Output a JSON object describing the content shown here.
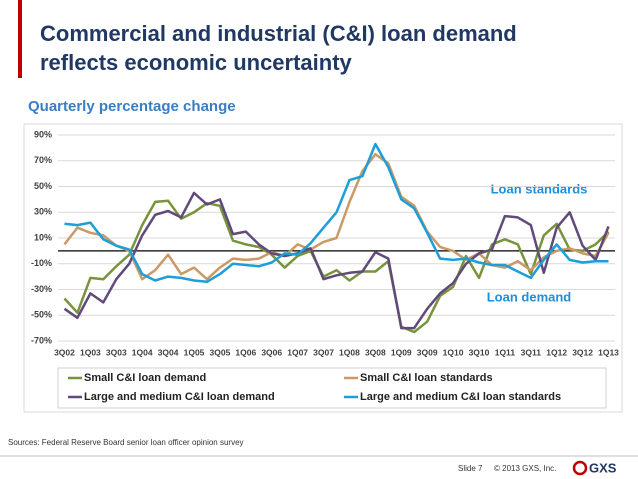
{
  "slide": {
    "title_lines": [
      "Commercial and industrial (C&I) loan demand",
      "reflects economic uncertainty"
    ],
    "source": "Sources: Federal Reserve Board senior loan officer opinion survey",
    "slide_number": "Slide 7",
    "copyright": "© 2013 GXS, Inc.",
    "logo": "GXS"
  },
  "chart_data": {
    "type": "line",
    "title": "Quarterly percentage change",
    "categories": [
      "3Q02",
      null,
      "1Q03",
      null,
      "3Q03",
      null,
      "1Q04",
      null,
      "3Q04",
      null,
      "1Q05",
      null,
      "3Q05",
      null,
      "1Q06",
      null,
      "3Q06",
      null,
      "1Q07",
      null,
      "3Q07",
      null,
      "1Q08",
      null,
      "3Q08",
      null,
      "1Q09",
      null,
      "3Q09",
      null,
      "1Q10",
      null,
      "3Q10",
      null,
      "1Q11",
      null,
      "3Q11",
      null,
      "1Q12",
      null,
      "3Q12",
      null,
      "1Q13"
    ],
    "series": [
      {
        "name": "Small C&I loan demand",
        "color": "#77933c",
        "values": [
          -37,
          -48,
          -21,
          -22,
          -12,
          -3,
          20,
          38,
          39,
          25,
          30,
          37,
          35,
          8,
          5,
          3,
          -3,
          -13,
          -4,
          0,
          -20,
          -15,
          -23,
          -16,
          -16,
          -8,
          -59,
          -63,
          -55,
          -35,
          -28,
          -4,
          -21,
          5,
          9,
          5,
          -18,
          12,
          21,
          1,
          0,
          5,
          15
        ]
      },
      {
        "name": "Small C&I loan standards",
        "color": "#cc9966",
        "values": [
          5,
          18,
          14,
          12,
          4,
          0,
          -22,
          -15,
          -3,
          -18,
          -13,
          -22,
          -13,
          -6,
          -7,
          -6,
          -1,
          -4,
          5,
          1,
          7,
          10,
          38,
          62,
          75,
          68,
          42,
          35,
          15,
          3,
          0,
          -7,
          -2,
          -11,
          -13,
          -8,
          -15,
          -5,
          0,
          2,
          -2,
          -4,
          14
        ]
      },
      {
        "name": "Large and medium C&I loan demand",
        "color": "#604a7b",
        "values": [
          -45,
          -52,
          -33,
          -40,
          -22,
          -10,
          12,
          28,
          31,
          26,
          45,
          36,
          40,
          13,
          15,
          5,
          -2,
          -4,
          -2,
          2,
          -22,
          -19,
          -17,
          -16,
          -1,
          -6,
          -60,
          -60,
          -45,
          -33,
          -25,
          -10,
          -2,
          1,
          27,
          26,
          20,
          -17,
          18,
          30,
          4,
          -7,
          19
        ]
      },
      {
        "name": "Large and medium C&I loan standards",
        "color": "#1c9fd8",
        "values": [
          21,
          20,
          22,
          9,
          4,
          1,
          -18,
          -23,
          -20,
          -21,
          -23,
          -24,
          -18,
          -10,
          -11,
          -12,
          -9,
          -2,
          -3,
          6,
          18,
          30,
          55,
          58,
          83,
          65,
          40,
          33,
          14,
          -6,
          -7,
          -6,
          -9,
          -11,
          -11,
          -16,
          -21,
          -7,
          5,
          -7,
          -9,
          -8,
          -8
        ]
      }
    ],
    "ylim": [
      -70,
      90
    ],
    "yticks": [
      {
        "value": -70,
        "label": "-70%"
      },
      {
        "value": -50,
        "label": "-50%"
      },
      {
        "value": -30,
        "label": "-30%"
      },
      {
        "value": -10,
        "label": "-10%"
      },
      {
        "value": 10,
        "label": "10%"
      },
      {
        "value": 30,
        "label": "30%"
      },
      {
        "value": 50,
        "label": "50%"
      },
      {
        "value": 70,
        "label": "70%"
      },
      {
        "value": 90,
        "label": "90%"
      }
    ],
    "grid": true,
    "annotations": [
      "Loan standards",
      "Loan demand"
    ],
    "legend": "bottom"
  }
}
